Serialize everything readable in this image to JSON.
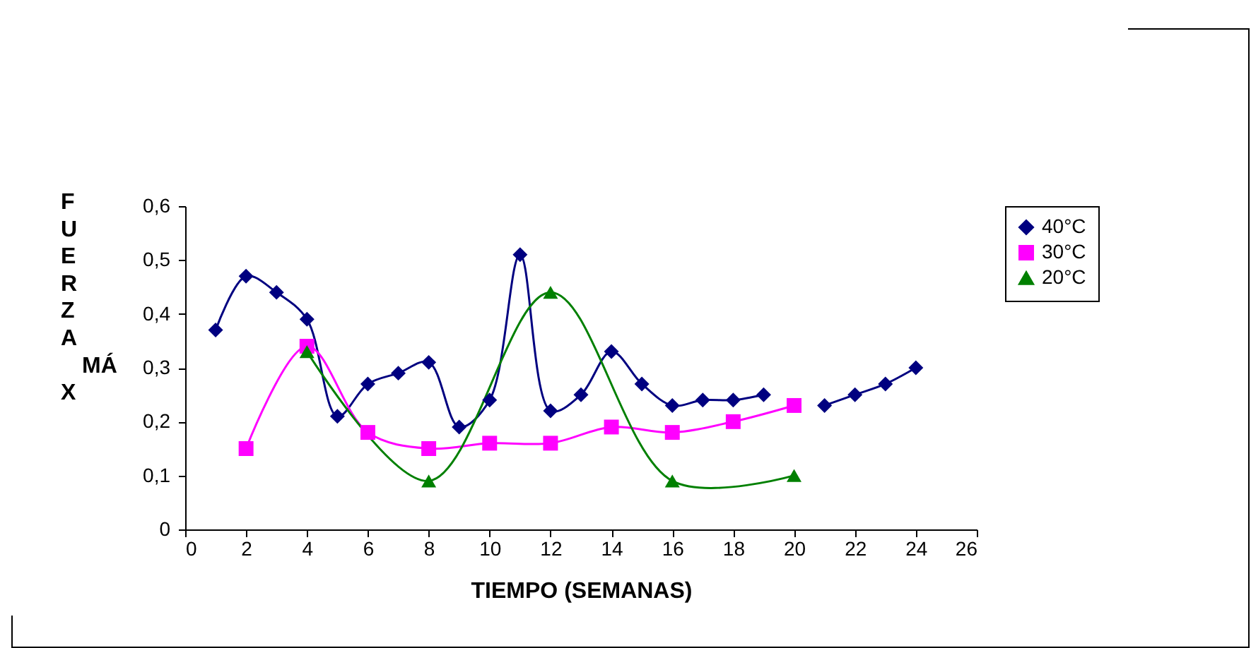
{
  "chart_data": {
    "type": "line",
    "xlabel": "TIEMPO (SEMANAS)",
    "ylabel": "FUERZA MÁX",
    "xlim": [
      0,
      26
    ],
    "xticks": [
      0,
      2,
      4,
      6,
      8,
      10,
      12,
      14,
      16,
      18,
      20,
      22,
      24,
      26
    ],
    "ylim": [
      0,
      0.6
    ],
    "yticks": [
      {
        "value": 0,
        "label": "0"
      },
      {
        "value": 0.1,
        "label": "0,1"
      },
      {
        "value": 0.2,
        "label": "0,2"
      },
      {
        "value": 0.3,
        "label": "0,3"
      },
      {
        "value": 0.4,
        "label": "0,4"
      },
      {
        "value": 0.5,
        "label": "0,5"
      },
      {
        "value": 0.6,
        "label": "0,6"
      }
    ],
    "grid": false,
    "legend": "right",
    "series": [
      {
        "name": "40°C",
        "color": "#000080",
        "marker": "diamond",
        "x": [
          1,
          2,
          3,
          4,
          5,
          6,
          7,
          8,
          9,
          10,
          11,
          12,
          13,
          14,
          15,
          16,
          17,
          18,
          19,
          20,
          21,
          22,
          23,
          24
        ],
        "values": [
          0.37,
          0.47,
          0.44,
          0.39,
          0.21,
          0.27,
          0.29,
          0.31,
          0.19,
          0.24,
          0.51,
          0.22,
          0.25,
          0.33,
          0.27,
          0.23,
          0.24,
          0.24,
          0.25,
          null,
          0.23,
          0.25,
          0.27,
          0.3
        ]
      },
      {
        "name": "30°C",
        "color": "#ff00ff",
        "marker": "square",
        "x": [
          2,
          4,
          6,
          8,
          10,
          12,
          14,
          16,
          18,
          20
        ],
        "values": [
          0.15,
          0.34,
          0.18,
          0.15,
          0.16,
          0.16,
          0.19,
          0.18,
          0.2,
          0.23
        ]
      },
      {
        "name": "20°C",
        "color": "#008000",
        "marker": "triangle",
        "x": [
          4,
          8,
          12,
          16,
          20
        ],
        "values": [
          0.33,
          0.09,
          0.44,
          0.09,
          0.1
        ]
      }
    ]
  }
}
